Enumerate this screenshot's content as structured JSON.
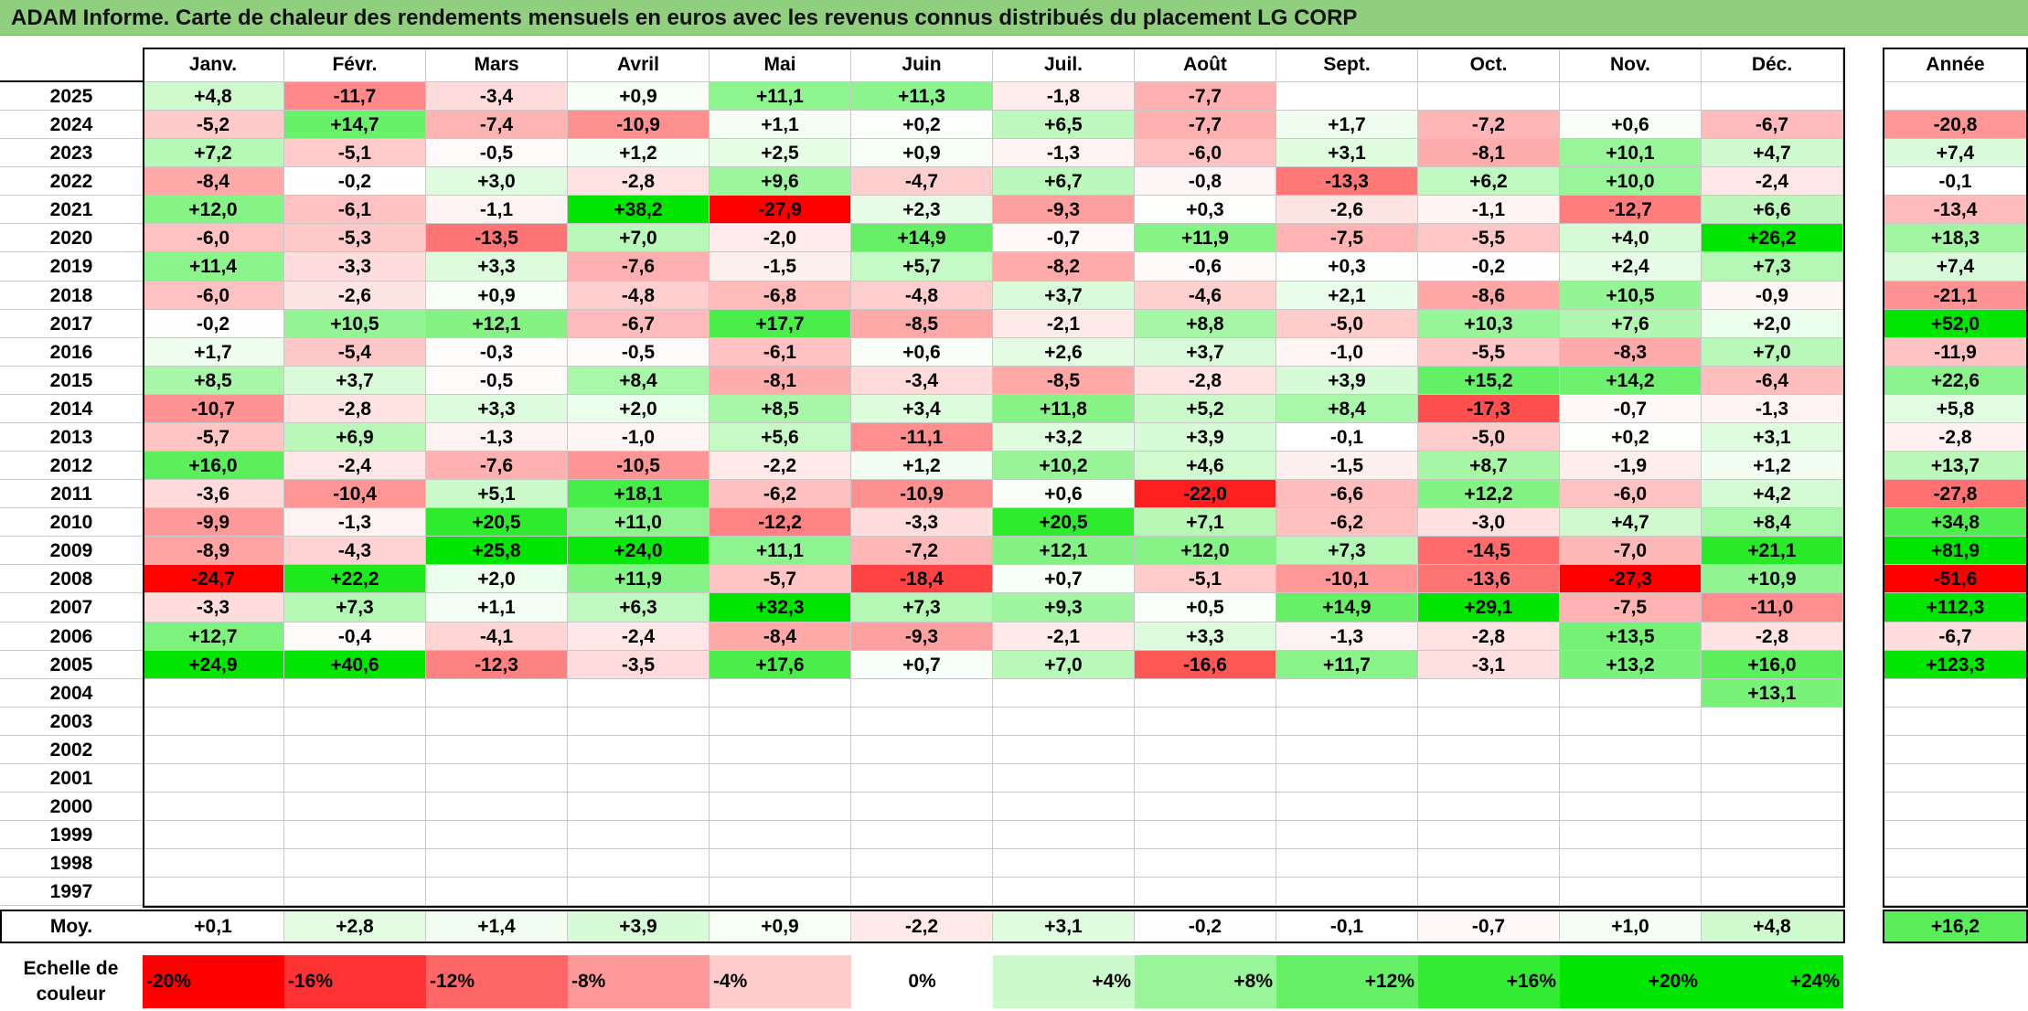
{
  "title": "ADAM Informe. Carte de chaleur des rendements mensuels en euros avec les revenus connus distribués du placement LG CORP",
  "colors": {
    "title_bar": "#8fcf7e",
    "negative_max": "#ff0000",
    "positive_max": "#00e600",
    "neutral": "#ffffff"
  },
  "chart_data": {
    "type": "heatmap",
    "title": "ADAM Informe. Carte de chaleur des rendements mensuels en euros avec les revenus connus distribués du placement LG CORP",
    "columns": [
      "Janv.",
      "Févr.",
      "Mars",
      "Avril",
      "Mai",
      "Juin",
      "Juil.",
      "Août",
      "Sept.",
      "Oct.",
      "Nov.",
      "Déc."
    ],
    "annual_header": "Année",
    "rows": [
      {
        "year": "2025",
        "months": [
          "+4,8",
          "-11,7",
          "-3,4",
          "+0,9",
          "+11,1",
          "+11,3",
          "-1,8",
          "-7,7",
          "",
          "",
          "",
          ""
        ],
        "annual": ""
      },
      {
        "year": "2024",
        "months": [
          "-5,2",
          "+14,7",
          "-7,4",
          "-10,9",
          "+1,1",
          "+0,2",
          "+6,5",
          "-7,7",
          "+1,7",
          "-7,2",
          "+0,6",
          "-6,7"
        ],
        "annual": "-20,8"
      },
      {
        "year": "2023",
        "months": [
          "+7,2",
          "-5,1",
          "-0,5",
          "+1,2",
          "+2,5",
          "+0,9",
          "-1,3",
          "-6,0",
          "+3,1",
          "-8,1",
          "+10,1",
          "+4,7"
        ],
        "annual": "+7,4"
      },
      {
        "year": "2022",
        "months": [
          "-8,4",
          "-0,2",
          "+3,0",
          "-2,8",
          "+9,6",
          "-4,7",
          "+6,7",
          "-0,8",
          "-13,3",
          "+6,2",
          "+10,0",
          "-2,4"
        ],
        "annual": "-0,1"
      },
      {
        "year": "2021",
        "months": [
          "+12,0",
          "-6,1",
          "-1,1",
          "+38,2",
          "-27,9",
          "+2,3",
          "-9,3",
          "+0,3",
          "-2,6",
          "-1,1",
          "-12,7",
          "+6,6"
        ],
        "annual": "-13,4"
      },
      {
        "year": "2020",
        "months": [
          "-6,0",
          "-5,3",
          "-13,5",
          "+7,0",
          "-2,0",
          "+14,9",
          "-0,7",
          "+11,9",
          "-7,5",
          "-5,5",
          "+4,0",
          "+26,2"
        ],
        "annual": "+18,3"
      },
      {
        "year": "2019",
        "months": [
          "+11,4",
          "-3,3",
          "+3,3",
          "-7,6",
          "-1,5",
          "+5,7",
          "-8,2",
          "-0,6",
          "+0,3",
          "-0,2",
          "+2,4",
          "+7,3"
        ],
        "annual": "+7,4"
      },
      {
        "year": "2018",
        "months": [
          "-6,0",
          "-2,6",
          "+0,9",
          "-4,8",
          "-6,8",
          "-4,8",
          "+3,7",
          "-4,6",
          "+2,1",
          "-8,6",
          "+10,5",
          "-0,9"
        ],
        "annual": "-21,1"
      },
      {
        "year": "2017",
        "months": [
          "-0,2",
          "+10,5",
          "+12,1",
          "-6,7",
          "+17,7",
          "-8,5",
          "-2,1",
          "+8,8",
          "-5,0",
          "+10,3",
          "+7,6",
          "+2,0"
        ],
        "annual": "+52,0"
      },
      {
        "year": "2016",
        "months": [
          "+1,7",
          "-5,4",
          "-0,3",
          "-0,5",
          "-6,1",
          "+0,6",
          "+2,6",
          "+3,7",
          "-1,0",
          "-5,5",
          "-8,3",
          "+7,0"
        ],
        "annual": "-11,9"
      },
      {
        "year": "2015",
        "months": [
          "+8,5",
          "+3,7",
          "-0,5",
          "+8,4",
          "-8,1",
          "-3,4",
          "-8,5",
          "-2,8",
          "+3,9",
          "+15,2",
          "+14,2",
          "-6,4"
        ],
        "annual": "+22,6"
      },
      {
        "year": "2014",
        "months": [
          "-10,7",
          "-2,8",
          "+3,3",
          "+2,0",
          "+8,5",
          "+3,4",
          "+11,8",
          "+5,2",
          "+8,4",
          "-17,3",
          "-0,7",
          "-1,3"
        ],
        "annual": "+5,8"
      },
      {
        "year": "2013",
        "months": [
          "-5,7",
          "+6,9",
          "-1,3",
          "-1,0",
          "+5,6",
          "-11,1",
          "+3,2",
          "+3,9",
          "-0,1",
          "-5,0",
          "+0,2",
          "+3,1"
        ],
        "annual": "-2,8"
      },
      {
        "year": "2012",
        "months": [
          "+16,0",
          "-2,4",
          "-7,6",
          "-10,5",
          "-2,2",
          "+1,2",
          "+10,2",
          "+4,6",
          "-1,5",
          "+8,7",
          "-1,9",
          "+1,2"
        ],
        "annual": "+13,7"
      },
      {
        "year": "2011",
        "months": [
          "-3,6",
          "-10,4",
          "+5,1",
          "+18,1",
          "-6,2",
          "-10,9",
          "+0,6",
          "-22,0",
          "-6,6",
          "+12,2",
          "-6,0",
          "+4,2"
        ],
        "annual": "-27,8"
      },
      {
        "year": "2010",
        "months": [
          "-9,9",
          "-1,3",
          "+20,5",
          "+11,0",
          "-12,2",
          "-3,3",
          "+20,5",
          "+7,1",
          "-6,2",
          "-3,0",
          "+4,7",
          "+8,4"
        ],
        "annual": "+34,8"
      },
      {
        "year": "2009",
        "months": [
          "-8,9",
          "-4,3",
          "+25,8",
          "+24,0",
          "+11,1",
          "-7,2",
          "+12,1",
          "+12,0",
          "+7,3",
          "-14,5",
          "-7,0",
          "+21,1"
        ],
        "annual": "+81,9"
      },
      {
        "year": "2008",
        "months": [
          "-24,7",
          "+22,2",
          "+2,0",
          "+11,9",
          "-5,7",
          "-18,4",
          "+0,7",
          "-5,1",
          "-10,1",
          "-13,6",
          "-27,3",
          "+10,9"
        ],
        "annual": "-51,6"
      },
      {
        "year": "2007",
        "months": [
          "-3,3",
          "+7,3",
          "+1,1",
          "+6,3",
          "+32,3",
          "+7,3",
          "+9,3",
          "+0,5",
          "+14,9",
          "+29,1",
          "-7,5",
          "-11,0"
        ],
        "annual": "+112,3"
      },
      {
        "year": "2006",
        "months": [
          "+12,7",
          "-0,4",
          "-4,1",
          "-2,4",
          "-8,4",
          "-9,3",
          "-2,1",
          "+3,3",
          "-1,3",
          "-2,8",
          "+13,5",
          "-2,8"
        ],
        "annual": "-6,7"
      },
      {
        "year": "2005",
        "months": [
          "+24,9",
          "+40,6",
          "-12,3",
          "-3,5",
          "+17,6",
          "+0,7",
          "+7,0",
          "-16,6",
          "+11,7",
          "-3,1",
          "+13,2",
          "+16,0"
        ],
        "annual": "+123,3"
      },
      {
        "year": "2004",
        "months": [
          "",
          "",
          "",
          "",
          "",
          "",
          "",
          "",
          "",
          "",
          "",
          "+13,1"
        ],
        "annual": ""
      },
      {
        "year": "2003",
        "months": [
          "",
          "",
          "",
          "",
          "",
          "",
          "",
          "",
          "",
          "",
          "",
          ""
        ],
        "annual": ""
      },
      {
        "year": "2002",
        "months": [
          "",
          "",
          "",
          "",
          "",
          "",
          "",
          "",
          "",
          "",
          "",
          ""
        ],
        "annual": ""
      },
      {
        "year": "2001",
        "months": [
          "",
          "",
          "",
          "",
          "",
          "",
          "",
          "",
          "",
          "",
          "",
          ""
        ],
        "annual": ""
      },
      {
        "year": "2000",
        "months": [
          "",
          "",
          "",
          "",
          "",
          "",
          "",
          "",
          "",
          "",
          "",
          ""
        ],
        "annual": ""
      },
      {
        "year": "1999",
        "months": [
          "",
          "",
          "",
          "",
          "",
          "",
          "",
          "",
          "",
          "",
          "",
          ""
        ],
        "annual": ""
      },
      {
        "year": "1998",
        "months": [
          "",
          "",
          "",
          "",
          "",
          "",
          "",
          "",
          "",
          "",
          "",
          ""
        ],
        "annual": ""
      },
      {
        "year": "1997",
        "months": [
          "",
          "",
          "",
          "",
          "",
          "",
          "",
          "",
          "",
          "",
          "",
          ""
        ],
        "annual": ""
      }
    ],
    "average": {
      "label": "Moy.",
      "months": [
        "+0,1",
        "+2,8",
        "+1,4",
        "+3,9",
        "+0,9",
        "-2,2",
        "+3,1",
        "-0,2",
        "-0,1",
        "-0,7",
        "+1,0",
        "+4,8"
      ],
      "annual": "+16,2"
    },
    "scale": {
      "label": "Echelle de couleur",
      "steps": [
        {
          "text": "-20%",
          "value": -20
        },
        {
          "text": "-16%",
          "value": -16
        },
        {
          "text": "-12%",
          "value": -12
        },
        {
          "text": "-8%",
          "value": -8
        },
        {
          "text": "-4%",
          "value": -4
        },
        {
          "text": "0%",
          "value": 0
        },
        {
          "text": "+4%",
          "value": 4
        },
        {
          "text": "+8%",
          "value": 8
        },
        {
          "text": "+12%",
          "value": 12
        },
        {
          "text": "+16%",
          "value": 16
        },
        {
          "text": "+20%",
          "value": 20
        },
        {
          "text": "+24%",
          "value": 24
        }
      ]
    }
  }
}
